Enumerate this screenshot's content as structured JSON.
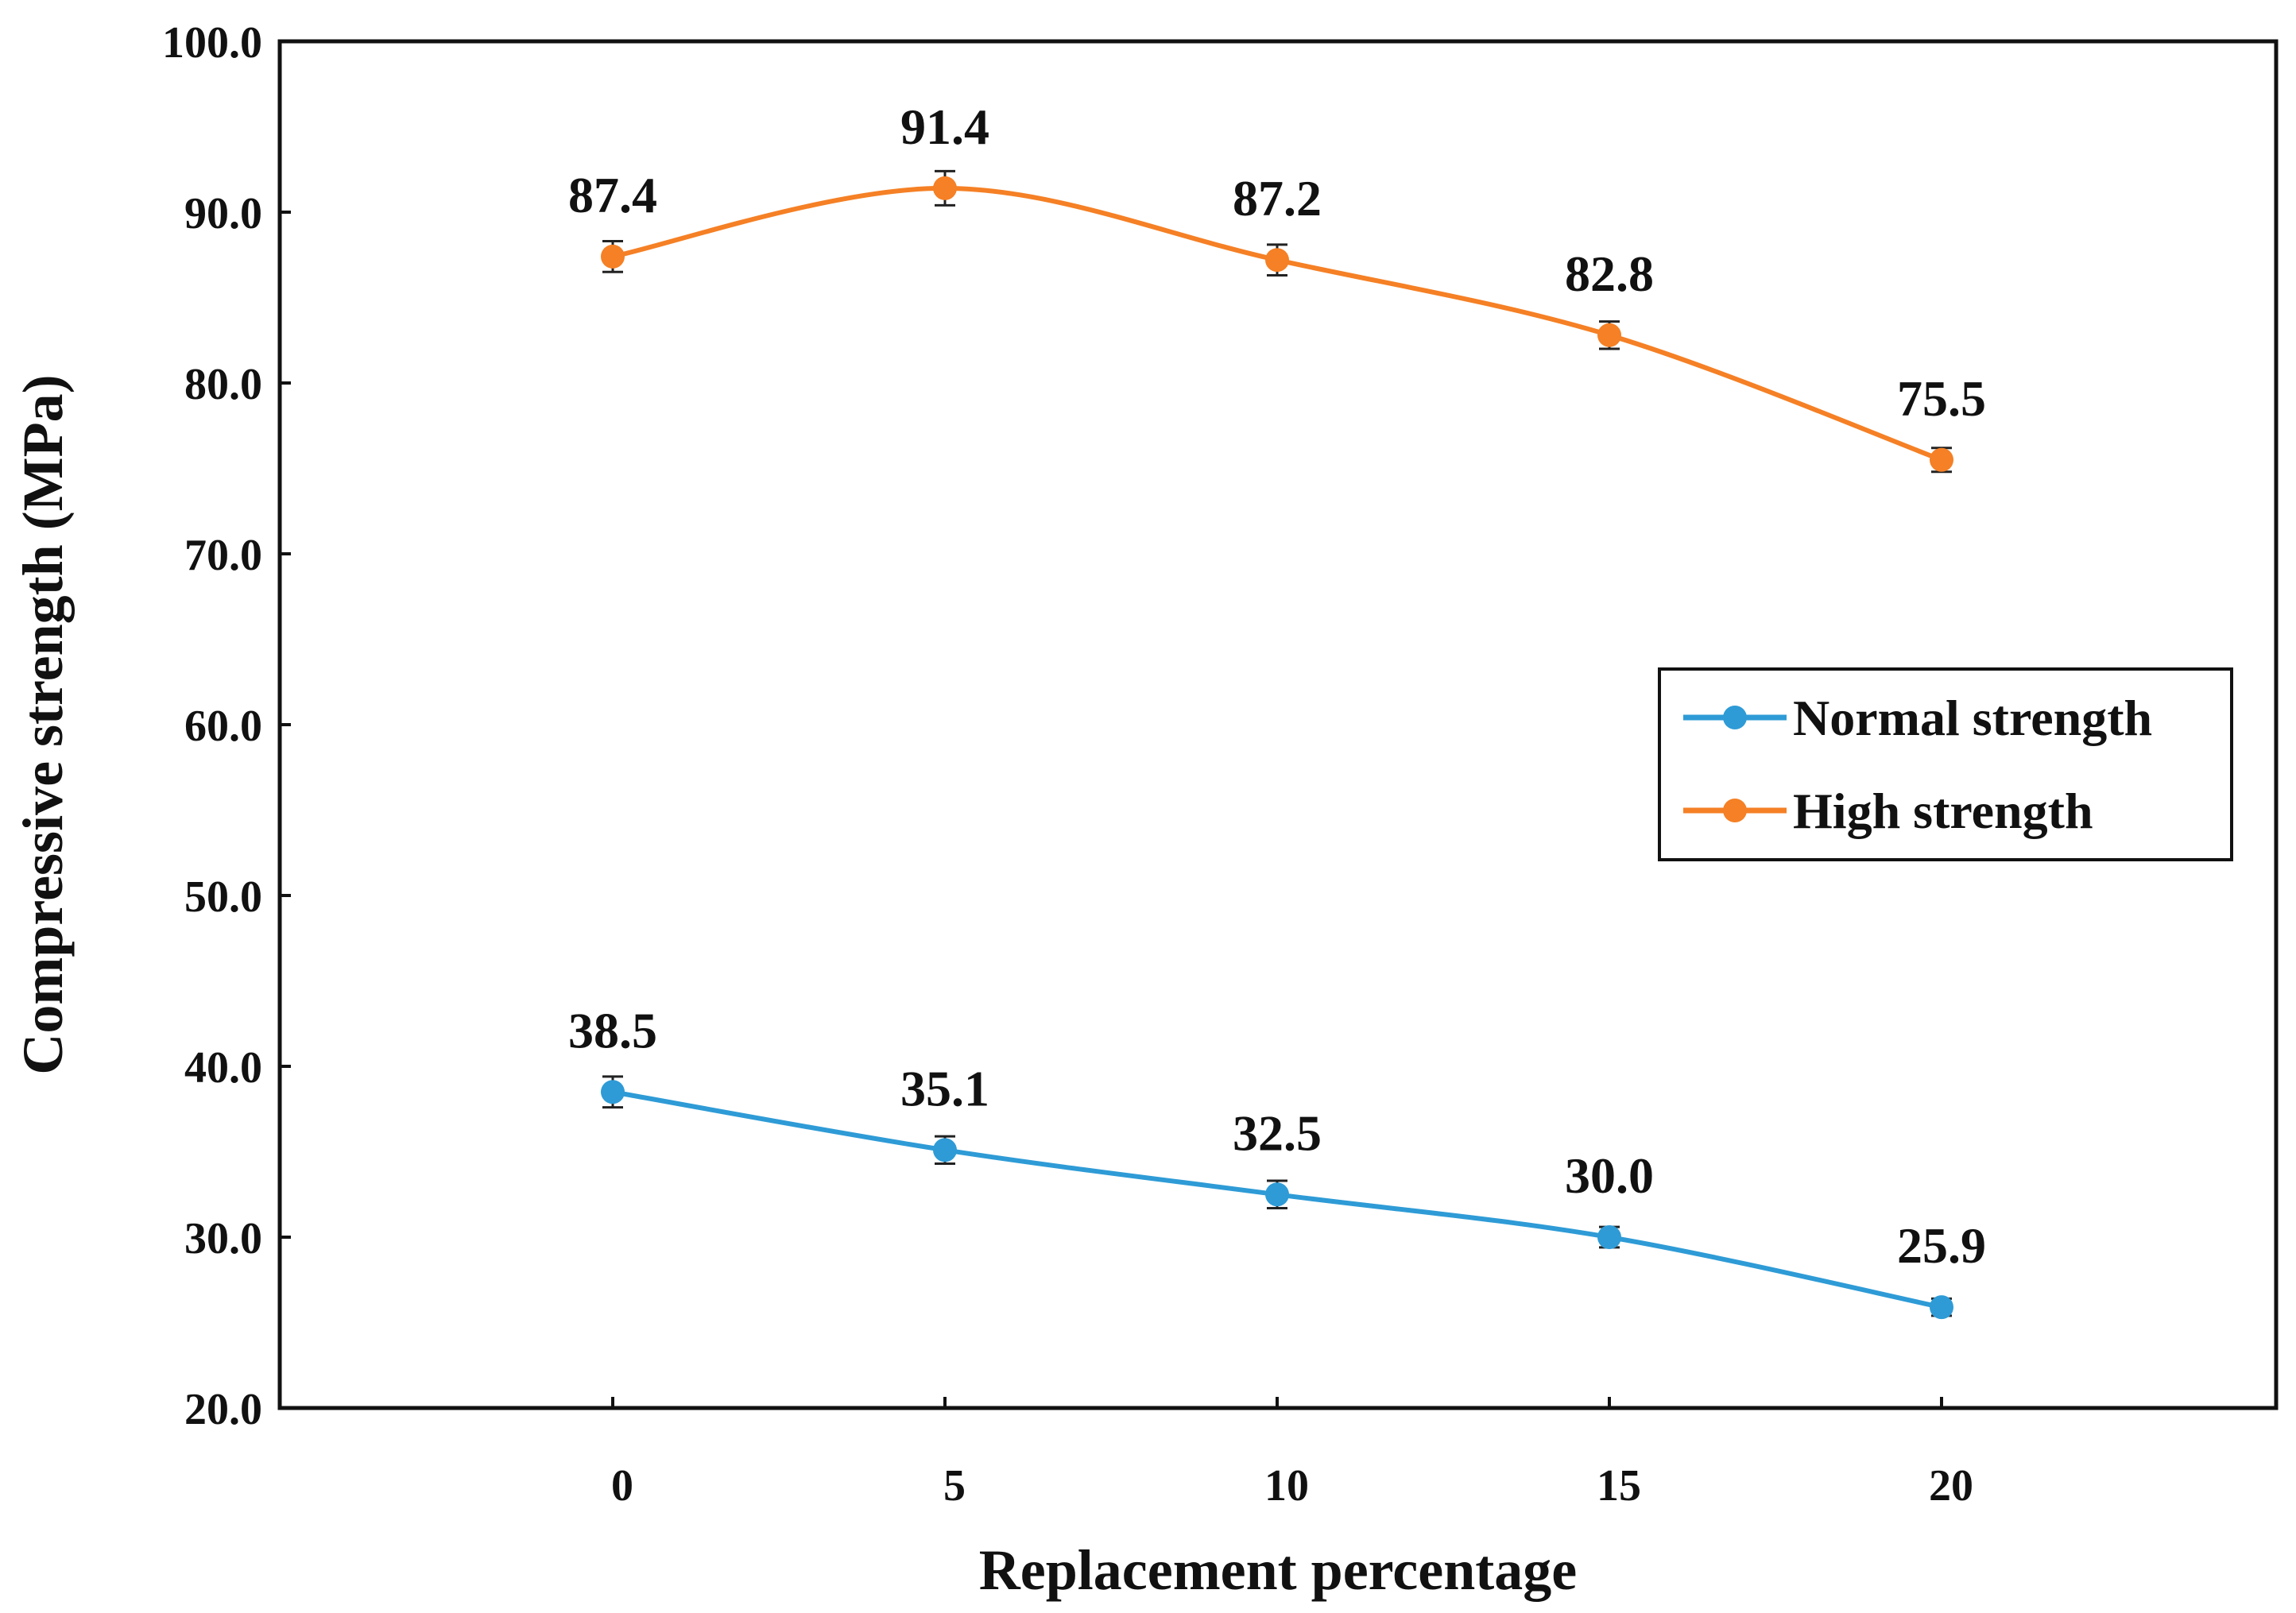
{
  "chart_data": {
    "type": "line",
    "title": "",
    "xlabel": "Replacement percentage",
    "ylabel": "Compressive strength (MPa)",
    "categories": [
      "0",
      "5",
      "10",
      "15",
      "20"
    ],
    "x": [
      0,
      5,
      10,
      15,
      20
    ],
    "ylim": [
      20,
      100
    ],
    "yticks": [
      "20.0",
      "30.0",
      "40.0",
      "50.0",
      "60.0",
      "70.0",
      "80.0",
      "90.0",
      "100.0"
    ],
    "grid": false,
    "error_bars": true,
    "legend_position": "center-right",
    "series": [
      {
        "name": "Normal strength",
        "color": "#2e9bd6",
        "values": [
          38.5,
          35.1,
          32.5,
          30.0,
          25.9
        ],
        "labels": [
          "38.5",
          "35.1",
          "32.5",
          "30.0",
          "25.9"
        ],
        "errors": [
          0.9,
          0.8,
          0.8,
          0.6,
          0.5
        ]
      },
      {
        "name": "High strength",
        "color": "#f58025",
        "values": [
          87.4,
          91.4,
          87.2,
          82.8,
          75.5
        ],
        "labels": [
          "87.4",
          "91.4",
          "87.2",
          "82.8",
          "75.5"
        ],
        "errors": [
          0.9,
          1.0,
          0.9,
          0.8,
          0.7
        ]
      }
    ]
  }
}
